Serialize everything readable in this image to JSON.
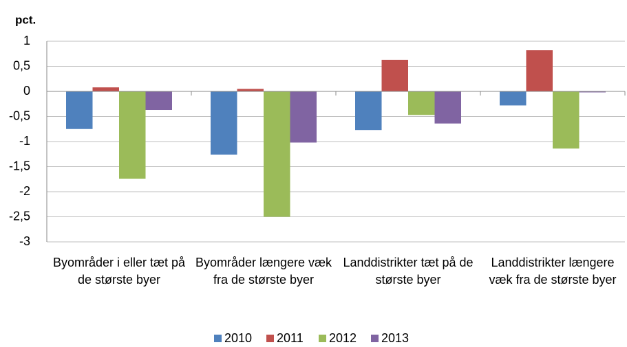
{
  "chart_data": {
    "type": "bar",
    "y_label": "pct.",
    "categories": [
      "Byområder i eller tæt på de største byer",
      "Byområder længere væk fra de største byer",
      "Landdistrikter tæt på de største byer",
      "Landdistrikter længere væk fra de største byer"
    ],
    "series": [
      {
        "name": "2010",
        "color": "#4f81bd",
        "values": [
          -0.75,
          -1.26,
          -0.77,
          -0.28
        ]
      },
      {
        "name": "2011",
        "color": "#c0504d",
        "values": [
          0.08,
          0.05,
          0.63,
          0.82
        ]
      },
      {
        "name": "2012",
        "color": "#9bbb59",
        "values": [
          -1.74,
          -2.5,
          -0.47,
          -1.14
        ]
      },
      {
        "name": "2013",
        "color": "#8064a2",
        "values": [
          -0.37,
          -1.02,
          -0.64,
          -0.02
        ]
      }
    ],
    "ylim": [
      -3,
      1
    ],
    "yticks": [
      1,
      {
        "value": 0.5,
        "label": "0,5"
      },
      0,
      {
        "value": -0.5,
        "label": "-0,5"
      },
      -1,
      {
        "value": -1.5,
        "label": "-1,5"
      },
      -2,
      {
        "value": -2.5,
        "label": "-2,5"
      },
      -3
    ],
    "grid": true,
    "legend": "bottom"
  }
}
